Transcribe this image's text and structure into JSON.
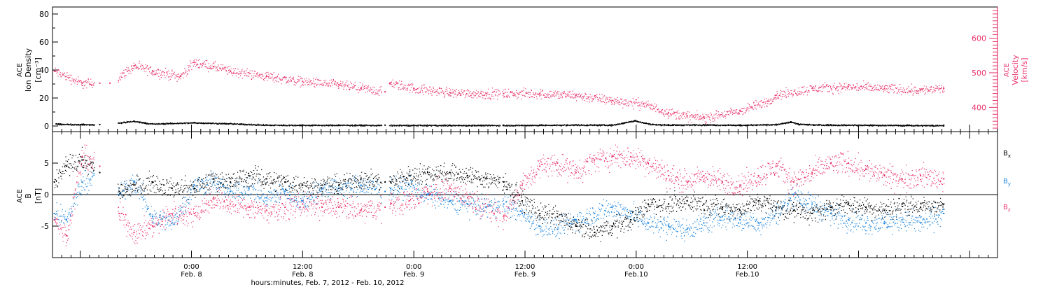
{
  "colors": {
    "black": "#000000",
    "pink": "#e8336b",
    "blue": "#1c85dd",
    "axis": "#000000"
  },
  "chart_data": [
    {
      "type": "scatter",
      "panel": "top",
      "ylabel_left": [
        "ACE",
        "Ion Density",
        "[cm⁻³]"
      ],
      "ylabel_right": [
        "ACE",
        "Velocity",
        "[km/s]"
      ],
      "ylim_left": [
        -4,
        85
      ],
      "ylim_right": [
        330,
        690
      ],
      "yticks_left": [
        "0",
        "20",
        "40",
        "60",
        "80"
      ],
      "yticks_right": [
        "400",
        "500",
        "600"
      ],
      "x_range_hours": [
        -15,
        87
      ],
      "data_gaps_hours": [
        [
          -10.5,
          -8
        ],
        [
          0,
          0.05
        ],
        [
          20.5,
          21.3
        ],
        [
          33.3,
          33.5
        ]
      ],
      "series": [
        {
          "name": "Ion Density",
          "axis": "left",
          "color_key": "black",
          "x": [
            -14.6,
            -11.8,
            -9.9,
            -6.2,
            -4.2,
            0.3,
            4.2,
            8.1,
            12.0,
            15.9,
            18.3,
            20.9,
            24.0,
            27.9,
            33.7,
            37.6,
            41.5,
            45.4,
            47.9,
            48.7,
            49.8,
            51.5,
            55.3,
            59.2,
            63.1,
            64.7,
            65.5,
            66.7,
            69.0,
            73.3,
            77.3,
            80.0,
            81.2
          ],
          "y": [
            1.5,
            1.2,
            1.0,
            3.5,
            1.6,
            2.5,
            1.8,
            0.8,
            0.7,
            0.7,
            0.7,
            0.6,
            0.6,
            0.6,
            0.6,
            0.7,
            0.9,
            0.8,
            4.0,
            2.5,
            1.2,
            0.9,
            1.0,
            0.7,
            1.2,
            3.0,
            1.5,
            1.1,
            0.9,
            0.7,
            0.6,
            0.5,
            0.6
          ]
        },
        {
          "name": "Velocity",
          "axis": "right",
          "color_key": "pink",
          "x": [
            -14.8,
            -11.8,
            -9.9,
            -8.8,
            -6.2,
            -4.2,
            -1.2,
            0.3,
            2.4,
            4.2,
            8.1,
            12.0,
            15.9,
            18.3,
            20.9,
            21.4,
            24.0,
            27.9,
            31.8,
            33.7,
            37.6,
            41.5,
            45.4,
            48.8,
            51.5,
            53.5,
            55.3,
            59.2,
            62.2,
            63.1,
            67.0,
            70.9,
            74.8,
            78.7,
            81.2
          ],
          "y": [
            505,
            470,
            470,
            470,
            520,
            505,
            490,
            530,
            518,
            505,
            490,
            475,
            465,
            455,
            445,
            470,
            455,
            443,
            440,
            440,
            440,
            435,
            420,
            410,
            385,
            375,
            370,
            390,
            418,
            435,
            455,
            460,
            455,
            450,
            455
          ]
        }
      ]
    },
    {
      "type": "scatter",
      "panel": "bottom",
      "ylabel": [
        "ACE",
        "B",
        "[nT]"
      ],
      "ylim": [
        -10,
        10
      ],
      "yticks": [
        "5",
        "0",
        "-5"
      ],
      "zero_line": true,
      "x_range_hours": [
        -15,
        87
      ],
      "xlabel": "hours:minutes, Feb.  7, 2012 - Feb. 10, 2012",
      "xticks": [
        {
          "hours": 0,
          "time": "0:00",
          "date": "Feb. 8"
        },
        {
          "hours": 12,
          "time": "12:00",
          "date": "Feb. 8"
        },
        {
          "hours": 24,
          "time": "0:00",
          "date": "Feb. 9"
        },
        {
          "hours": 36,
          "time": "12:00",
          "date": "Feb. 9"
        },
        {
          "hours": 48,
          "time": "0:00",
          "date": "Feb.10"
        },
        {
          "hours": 60,
          "time": "12:00",
          "date": "Feb.10"
        }
      ],
      "x_minor_tick_hours": 1,
      "x_major_tick_hours": 12,
      "data_gaps_hours": [
        [
          -10.5,
          -8
        ],
        [
          0,
          0.05
        ],
        [
          20.5,
          21.3
        ],
        [
          33.3,
          33.5
        ]
      ],
      "series": [
        {
          "name": "B",
          "subscript": "x",
          "color_key": "black",
          "x": [
            -14.8,
            -13.5,
            -11.8,
            -9.9,
            -7.8,
            -6.2,
            -4.2,
            -2.1,
            0.3,
            2.4,
            4.2,
            6.2,
            8.1,
            10.1,
            12.0,
            14.1,
            15.9,
            18.3,
            20.9,
            21.5,
            23.5,
            25.5,
            27.9,
            29.8,
            31.8,
            33.7,
            35.7,
            37.6,
            39.5,
            41.5,
            43.5,
            45.4,
            47.4,
            49.3,
            51.5,
            53.5,
            55.3,
            57.3,
            59.2,
            61.2,
            63.1,
            65.0,
            67.0,
            69.0,
            70.9,
            72.8,
            74.8,
            76.7,
            78.7,
            81.2
          ],
          "y": [
            2.0,
            4.5,
            5.5,
            3.5,
            0.5,
            1.5,
            2.0,
            1.0,
            1.0,
            2.5,
            2.0,
            3.0,
            2.5,
            2.0,
            1.5,
            1.5,
            1.5,
            2.5,
            2.0,
            2.0,
            3.0,
            3.5,
            3.5,
            3.0,
            2.5,
            2.0,
            -1.0,
            -3.0,
            -3.5,
            -5.0,
            -6.0,
            -5.0,
            -4.0,
            -1.5,
            -1.5,
            -1.0,
            -1.5,
            -2.0,
            -2.5,
            -1.0,
            -2.0,
            -2.5,
            -3.0,
            -2.0,
            -1.5,
            -2.0,
            -2.5,
            -1.5,
            -2.0,
            -1.5
          ]
        },
        {
          "name": "B",
          "subscript": "y",
          "color_key": "blue",
          "x": [
            -14.8,
            -13.5,
            -11.8,
            -9.9,
            -7.8,
            -6.2,
            -4.2,
            -2.1,
            0.3,
            2.4,
            4.2,
            6.2,
            8.1,
            10.1,
            12.0,
            14.1,
            15.9,
            18.3,
            20.9,
            21.5,
            23.5,
            25.5,
            27.9,
            29.8,
            31.8,
            33.7,
            35.7,
            37.6,
            39.5,
            41.5,
            43.5,
            45.4,
            47.4,
            49.3,
            51.5,
            53.5,
            55.3,
            57.3,
            59.2,
            61.2,
            63.1,
            65.0,
            67.0,
            69.0,
            70.9,
            72.8,
            74.8,
            76.7,
            78.7,
            81.2
          ],
          "y": [
            -3.0,
            -4.0,
            2.0,
            3.5,
            0.0,
            2.0,
            -3.5,
            -4.5,
            1.5,
            2.0,
            0.5,
            1.0,
            -0.5,
            0.5,
            -1.0,
            1.0,
            1.0,
            1.5,
            0.5,
            1.0,
            1.5,
            0.0,
            -1.0,
            -1.5,
            -2.0,
            -1.5,
            -3.0,
            -5.0,
            -5.5,
            -4.0,
            -3.0,
            -2.0,
            -3.0,
            -4.5,
            -5.0,
            -5.5,
            -4.5,
            -3.5,
            -4.0,
            -4.5,
            -3.0,
            0.0,
            -1.5,
            -3.0,
            -4.0,
            -4.5,
            -4.5,
            -4.0,
            -4.5,
            -3.0
          ]
        },
        {
          "name": "B",
          "subscript": "z",
          "color_key": "pink",
          "x": [
            -14.8,
            -13.5,
            -11.8,
            -9.9,
            -7.8,
            -6.2,
            -4.2,
            -2.1,
            0.3,
            2.4,
            4.2,
            6.2,
            8.1,
            10.1,
            12.0,
            14.1,
            15.9,
            18.3,
            20.9,
            21.5,
            23.5,
            25.5,
            27.9,
            29.8,
            31.8,
            33.7,
            35.7,
            37.6,
            39.5,
            41.5,
            43.5,
            45.4,
            47.4,
            49.3,
            51.5,
            53.5,
            55.3,
            57.3,
            59.2,
            61.2,
            63.1,
            65.0,
            67.0,
            69.0,
            70.9,
            72.8,
            74.8,
            76.7,
            78.7,
            81.2
          ],
          "y": [
            -4.0,
            -6.5,
            6.0,
            4.5,
            -3.0,
            -6.0,
            -5.0,
            -3.0,
            -3.0,
            -0.5,
            -1.5,
            -2.0,
            -2.5,
            -2.0,
            -1.5,
            -2.0,
            -2.0,
            -2.5,
            -2.0,
            -1.5,
            -1.0,
            0.5,
            1.0,
            -0.5,
            -2.0,
            -3.5,
            1.5,
            4.5,
            5.0,
            3.5,
            5.5,
            6.0,
            6.0,
            5.0,
            3.0,
            2.0,
            3.0,
            2.0,
            1.5,
            3.0,
            4.5,
            2.0,
            3.5,
            5.0,
            5.0,
            4.0,
            3.0,
            2.5,
            3.0,
            2.5
          ]
        }
      ]
    }
  ]
}
